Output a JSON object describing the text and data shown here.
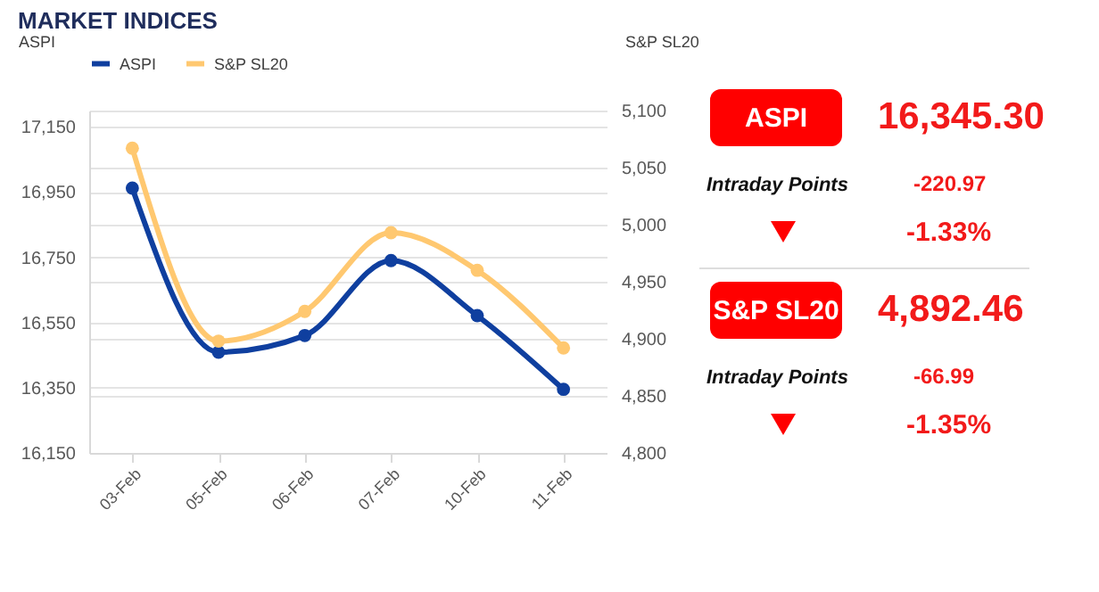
{
  "chart_data": [
    {
      "type": "line",
      "title": "MARKET INDICES",
      "ylabel": "ASPI",
      "y2label": "S&P SL20",
      "categories": [
        "03-Feb",
        "05-Feb",
        "06-Feb",
        "07-Feb",
        "10-Feb",
        "11-Feb"
      ],
      "series": [
        {
          "name": "ASPI",
          "color": "#0f3f9f",
          "values": [
            16962,
            16459,
            16510,
            16740,
            16571,
            16345
          ]
        },
        {
          "name": "S&P SL20",
          "color": "#ffc870",
          "axis": "y2",
          "values": [
            5067,
            4898,
            4924,
            4993,
            4960,
            4892
          ]
        }
      ],
      "ylim": [
        16150,
        17200
      ],
      "yticks": [
        {
          "value": 16150,
          "label": "16,150"
        },
        {
          "value": 16350,
          "label": "16,350"
        },
        {
          "value": 16550,
          "label": "16,550"
        },
        {
          "value": 16750,
          "label": "16,750"
        },
        {
          "value": 16950,
          "label": "16,950"
        },
        {
          "value": 17150,
          "label": "17,150"
        }
      ],
      "y2lim": [
        4800,
        5100
      ],
      "y2ticks": [
        {
          "value": 4800,
          "label": "4,800"
        },
        {
          "value": 4850,
          "label": "4,850"
        },
        {
          "value": 4900,
          "label": "4,900"
        },
        {
          "value": 4950,
          "label": "4,950"
        },
        {
          "value": 5000,
          "label": "5,000"
        },
        {
          "value": 5050,
          "label": "5,050"
        },
        {
          "value": 5100,
          "label": "5,100"
        }
      ],
      "grid": true,
      "legend": "top",
      "marker": "circle",
      "line_style": "solid"
    },
    {
      "type": "other",
      "annotations": [
        "ASPI",
        "16,345.30",
        "Intraday Points",
        "-220.97",
        "-1.33%",
        "S&P SL20",
        "4,892.46",
        "Intraday Points",
        "-66.99",
        "-1.35%"
      ]
    }
  ]
}
